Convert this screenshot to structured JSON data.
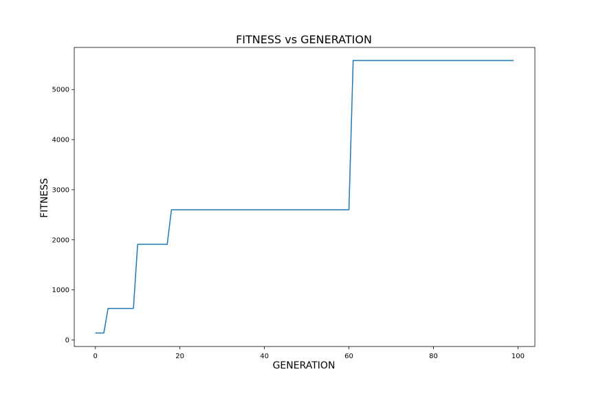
{
  "chart_data": {
    "type": "line",
    "title": "FITNESS vs GENERATION",
    "xlabel": "GENERATION",
    "ylabel": "FITNESS",
    "xlim": [
      -5,
      104
    ],
    "ylim": [
      -130,
      5840
    ],
    "xticks": [
      0,
      20,
      40,
      60,
      80,
      100
    ],
    "yticks": [
      0,
      1000,
      2000,
      3000,
      4000,
      5000
    ],
    "grid": false,
    "line_color": "#1f77b4",
    "series": [
      {
        "x": [
          0,
          2,
          3,
          9,
          10,
          17,
          18,
          60,
          61,
          99
        ],
        "y": [
          140,
          140,
          630,
          630,
          1910,
          1910,
          2600,
          2600,
          5580,
          5580
        ]
      }
    ]
  }
}
